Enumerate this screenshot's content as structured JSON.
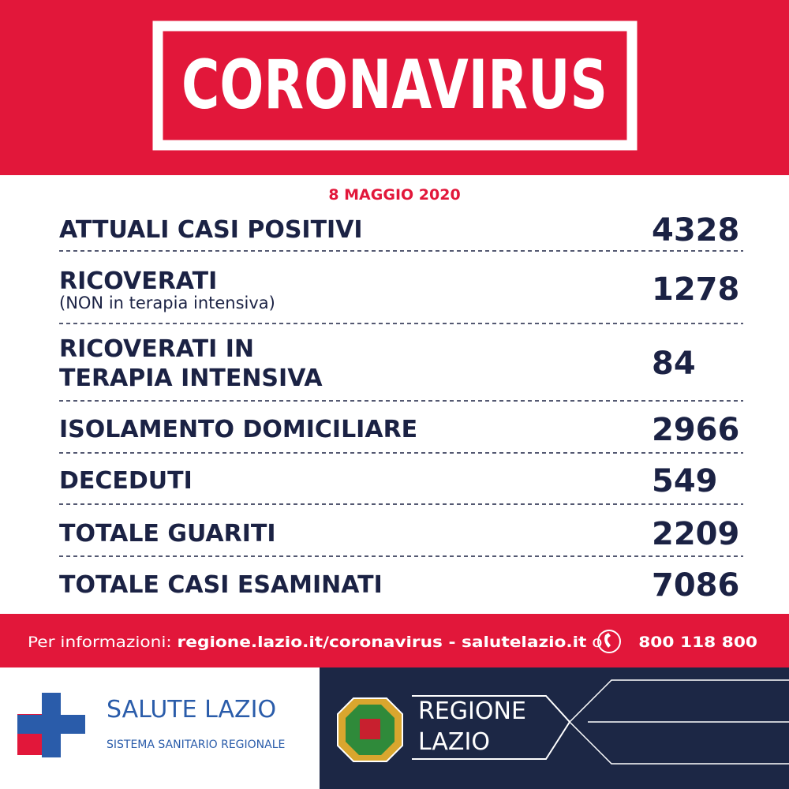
{
  "header": {
    "title": "CORONAVIRUS"
  },
  "date": "8 MAGGIO 2020",
  "rows": [
    {
      "label": "ATTUALI CASI POSITIVI",
      "value": 4328
    },
    {
      "label": "RICOVERATI",
      "note": "(NON in terapia intensiva)",
      "value": 1278
    },
    {
      "label_lines": [
        "RICOVERATI IN",
        "TERAPIA INTENSIVA"
      ],
      "value": 84
    },
    {
      "label": "ISOLAMENTO DOMICILIARE",
      "value": 2966
    },
    {
      "label": "DECEDUTI",
      "value": 549
    },
    {
      "label": "TOTALE GUARITI",
      "value": 2209
    },
    {
      "label": "TOTALE CASI ESAMINATI",
      "value": 7086
    }
  ],
  "info": {
    "prefix": "Per informazioni:",
    "links": "regione.lazio.it/coronavirus - salutelazio.it",
    "connector": "o",
    "phone": "800 118 800"
  },
  "logos": {
    "salute_title": "SALUTE LAZIO",
    "salute_subtitle": "SISTEMA SANITARIO REGIONALE",
    "regione_line1": "REGIONE",
    "regione_line2": "LAZIO"
  }
}
